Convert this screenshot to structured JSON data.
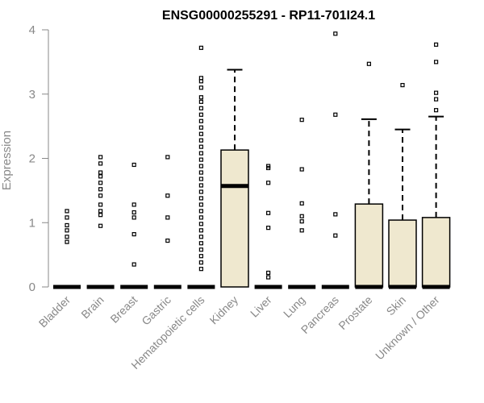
{
  "chart_data": {
    "type": "box",
    "title": "ENSG00000255291 - RP11-701I24.1",
    "xlabel": "",
    "ylabel": "Expression",
    "ylim": [
      0,
      4
    ],
    "yticks": [
      0,
      1,
      2,
      3,
      4
    ],
    "categories": [
      "Bladder",
      "Brain",
      "Breast",
      "Gastric",
      "Hematopoietic cells",
      "Kidney",
      "Liver",
      "Lung",
      "Pancreas",
      "Prostate",
      "Skin",
      "Unknown / Other"
    ],
    "box_fill": "#efe8cf",
    "boxes": [
      {
        "q1": 0,
        "median": 0,
        "q3": 0,
        "whisker_low": 0,
        "whisker_high": 0,
        "outliers": [
          0.7,
          0.78,
          0.88,
          0.96,
          1.08,
          1.18
        ]
      },
      {
        "q1": 0,
        "median": 0,
        "q3": 0,
        "whisker_low": 0,
        "whisker_high": 0,
        "outliers": [
          0.95,
          1.12,
          1.18,
          1.28,
          1.42,
          1.52,
          1.62,
          1.72,
          1.78,
          1.92,
          2.02
        ]
      },
      {
        "q1": 0,
        "median": 0,
        "q3": 0,
        "whisker_low": 0,
        "whisker_high": 0,
        "outliers": [
          0.35,
          0.82,
          1.08,
          1.16,
          1.28,
          1.9
        ]
      },
      {
        "q1": 0,
        "median": 0,
        "q3": 0,
        "whisker_low": 0,
        "whisker_high": 0,
        "outliers": [
          0.72,
          1.08,
          1.42,
          2.02
        ]
      },
      {
        "q1": 0,
        "median": 0,
        "q3": 0,
        "whisker_low": 0,
        "whisker_high": 0,
        "outliers": [
          0.28,
          0.38,
          0.48,
          0.58,
          0.68,
          0.78,
          0.88,
          0.98,
          1.08,
          1.18,
          1.28,
          1.38,
          1.48,
          1.58,
          1.68,
          1.78,
          1.88,
          1.98,
          2.08,
          2.18,
          2.28,
          2.38,
          2.48,
          2.58,
          2.68,
          2.78,
          2.88,
          2.95,
          3.1,
          3.2,
          3.25,
          3.72
        ]
      },
      {
        "q1": 0,
        "median": 1.57,
        "q3": 2.13,
        "whisker_low": 0,
        "whisker_high": 3.38,
        "outliers": []
      },
      {
        "q1": 0,
        "median": 0,
        "q3": 0,
        "whisker_low": 0,
        "whisker_high": 0,
        "outliers": [
          0.15,
          0.22,
          0.92,
          1.15,
          1.62,
          1.85,
          1.88
        ]
      },
      {
        "q1": 0,
        "median": 0,
        "q3": 0,
        "whisker_low": 0,
        "whisker_high": 0,
        "outliers": [
          0.88,
          1.02,
          1.1,
          1.3,
          1.83,
          2.6
        ]
      },
      {
        "q1": 0,
        "median": 0,
        "q3": 0,
        "whisker_low": 0,
        "whisker_high": 0,
        "outliers": [
          0.8,
          1.13,
          2.68,
          3.94
        ]
      },
      {
        "q1": 0,
        "median": 0,
        "q3": 1.29,
        "whisker_low": 0,
        "whisker_high": 2.61,
        "outliers": [
          3.47
        ]
      },
      {
        "q1": 0,
        "median": 0,
        "q3": 1.04,
        "whisker_low": 0,
        "whisker_high": 2.45,
        "outliers": [
          3.14
        ]
      },
      {
        "q1": 0,
        "median": 0,
        "q3": 1.08,
        "whisker_low": 0,
        "whisker_high": 2.65,
        "outliers": [
          2.75,
          2.92,
          3.02,
          3.5,
          3.77
        ]
      }
    ]
  }
}
